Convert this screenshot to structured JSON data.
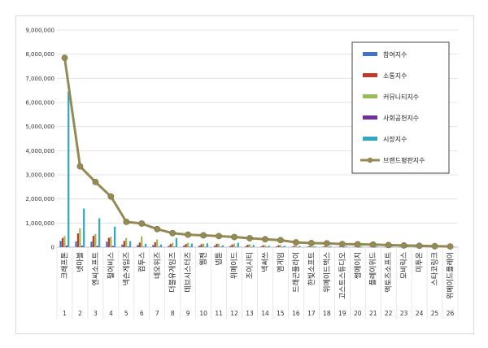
{
  "chart_data": {
    "type": "bar",
    "title": "",
    "xlabel": "",
    "ylabel": "",
    "ylim": [
      0,
      9000000
    ],
    "yticks": [
      "0",
      "1,000,000",
      "2,000,000",
      "3,000,000",
      "4,000,000",
      "5,000,000",
      "6,000,000",
      "7,000,000",
      "8,000,000",
      "9,000,000"
    ],
    "ytick_values": [
      0,
      1000000,
      2000000,
      3000000,
      4000000,
      5000000,
      6000000,
      7000000,
      8000000,
      9000000
    ],
    "grid": true,
    "legend_position": "right",
    "indices": [
      "1",
      "2",
      "3",
      "4",
      "5",
      "6",
      "7",
      "8",
      "9",
      "10",
      "11",
      "12",
      "13",
      "14",
      "15",
      "16",
      "17",
      "18",
      "19",
      "20",
      "21",
      "22",
      "23",
      "24",
      "25",
      "26"
    ],
    "categories": [
      "크래프톤",
      "넷마블",
      "엔씨소프트",
      "펄어비스",
      "넥슨게임즈",
      "컴투스",
      "네오위즈",
      "더블유게임즈",
      "데브시스터즈",
      "웹젠",
      "넵튠",
      "위메이드",
      "조이시티",
      "넥써쓰",
      "엠게임",
      "드래곤플라이",
      "한빛소프트",
      "위메이드맥스",
      "고스트스튜디오",
      "썸에이지",
      "플레이위드",
      "액토즈소프트",
      "모비릭스",
      "미투온",
      "스타코링크",
      "위메이드플레이"
    ],
    "series": [
      {
        "name": "참여지수",
        "kind": "bar",
        "color": "#4472c4",
        "values": [
          260000,
          240000,
          230000,
          230000,
          110000,
          90000,
          90000,
          50000,
          70000,
          60000,
          70000,
          50000,
          40000,
          30000,
          30000,
          20000,
          20000,
          20000,
          15000,
          15000,
          12000,
          10000,
          8000,
          8000,
          5000,
          5000
        ]
      },
      {
        "name": "소통지수",
        "kind": "bar",
        "color": "#c0392b",
        "values": [
          380000,
          570000,
          470000,
          390000,
          260000,
          190000,
          200000,
          130000,
          130000,
          120000,
          140000,
          110000,
          100000,
          80000,
          80000,
          50000,
          40000,
          40000,
          30000,
          25000,
          20000,
          20000,
          15000,
          15000,
          10000,
          10000
        ]
      },
      {
        "name": "커뮤니티지수",
        "kind": "bar",
        "color": "#9bbb59",
        "values": [
          460000,
          780000,
          550000,
          430000,
          380000,
          450000,
          320000,
          180000,
          180000,
          150000,
          140000,
          150000,
          120000,
          80000,
          90000,
          60000,
          50000,
          50000,
          40000,
          30000,
          25000,
          25000,
          20000,
          15000,
          10000,
          10000
        ]
      },
      {
        "name": "사회공헌지수",
        "kind": "bar",
        "color": "#7030a0",
        "values": [
          60000,
          60000,
          50000,
          50000,
          30000,
          20000,
          20000,
          20000,
          20000,
          15000,
          15000,
          15000,
          10000,
          10000,
          10000,
          8000,
          8000,
          8000,
          5000,
          5000,
          5000,
          5000,
          4000,
          4000,
          3000,
          3000
        ]
      },
      {
        "name": "시장지수",
        "kind": "bar",
        "color": "#31a8c0",
        "values": [
          6450000,
          1600000,
          1200000,
          850000,
          250000,
          140000,
          110000,
          380000,
          150000,
          160000,
          80000,
          180000,
          90000,
          60000,
          60000,
          50000,
          40000,
          50000,
          40000,
          30000,
          30000,
          20000,
          20000,
          20000,
          15000,
          15000
        ]
      },
      {
        "name": "브랜드평판지수",
        "kind": "line",
        "color": "#948a54",
        "values": [
          7850000,
          3350000,
          2700000,
          2100000,
          1050000,
          980000,
          750000,
          580000,
          520000,
          490000,
          460000,
          420000,
          370000,
          330000,
          290000,
          200000,
          170000,
          160000,
          130000,
          120000,
          110000,
          90000,
          70000,
          60000,
          40000,
          30000
        ]
      }
    ]
  }
}
